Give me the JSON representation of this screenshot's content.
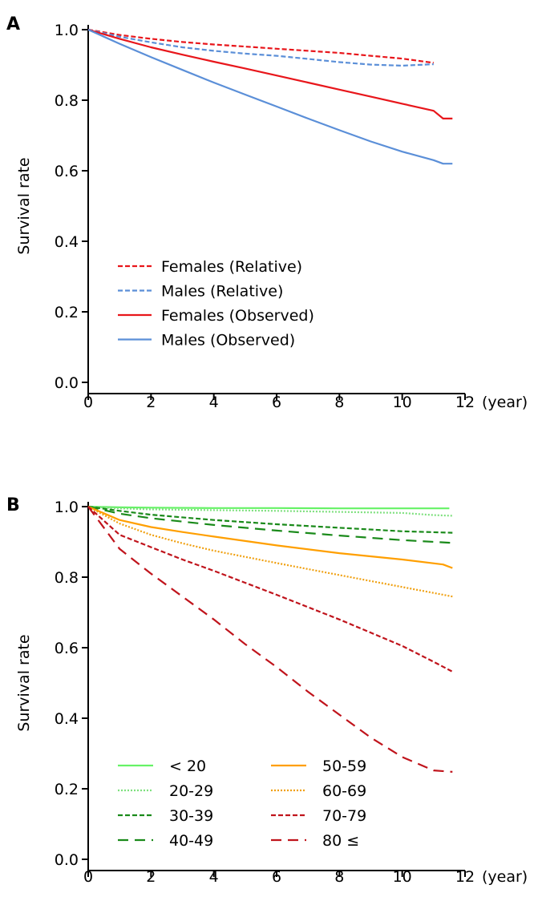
{
  "chart_data": [
    {
      "panel": "A",
      "type": "line",
      "ylabel": "Survival rate",
      "xlabel": "",
      "x_unit_label": "(year)",
      "xlim": [
        0,
        12
      ],
      "ylim": [
        0,
        1.0
      ],
      "xticks": [
        "0",
        "2",
        "4",
        "6",
        "8",
        "10",
        "12"
      ],
      "yticks": [
        "0.0",
        "0.2",
        "0.4",
        "0.6",
        "0.8",
        "1.0"
      ],
      "legend_position": "lower-left",
      "series": [
        {
          "name": "Females (Relative)",
          "color": "#e8161b",
          "dash": "dashed",
          "x": [
            0,
            1,
            2,
            3,
            4,
            5,
            6,
            7,
            8,
            9,
            10,
            11
          ],
          "y": [
            1.0,
            0.985,
            0.974,
            0.965,
            0.958,
            0.952,
            0.946,
            0.94,
            0.934,
            0.926,
            0.918,
            0.906
          ]
        },
        {
          "name": "Males (Relative)",
          "color": "#5b8fd8",
          "dash": "dashed",
          "x": [
            0,
            1,
            2,
            3,
            4,
            5,
            6,
            7,
            8,
            9,
            10,
            11
          ],
          "y": [
            1.0,
            0.98,
            0.964,
            0.95,
            0.94,
            0.932,
            0.926,
            0.917,
            0.908,
            0.901,
            0.898,
            0.902
          ]
        },
        {
          "name": "Females (Observed)",
          "color": "#e8161b",
          "dash": "solid",
          "x": [
            0,
            1,
            2,
            3,
            4,
            5,
            6,
            7,
            8,
            9,
            10,
            11,
            11.3,
            11.6
          ],
          "y": [
            1.0,
            0.974,
            0.95,
            0.929,
            0.909,
            0.89,
            0.87,
            0.85,
            0.83,
            0.81,
            0.79,
            0.77,
            0.748,
            0.748
          ]
        },
        {
          "name": "Males (Observed)",
          "color": "#5b8fd8",
          "dash": "solid",
          "x": [
            0,
            1,
            2,
            3,
            4,
            5,
            6,
            7,
            8,
            9,
            10,
            11,
            11.3,
            11.6
          ],
          "y": [
            1.0,
            0.96,
            0.922,
            0.886,
            0.85,
            0.816,
            0.782,
            0.748,
            0.715,
            0.683,
            0.654,
            0.63,
            0.62,
            0.62
          ]
        }
      ]
    },
    {
      "panel": "B",
      "type": "line",
      "ylabel": "Survival rate",
      "xlabel": "",
      "x_unit_label": "(year)",
      "xlim": [
        0,
        12
      ],
      "ylim": [
        0,
        1.0
      ],
      "xticks": [
        "0",
        "2",
        "4",
        "6",
        "8",
        "10",
        "12"
      ],
      "yticks": [
        "0.0",
        "0.2",
        "0.4",
        "0.6",
        "0.8",
        "1.0"
      ],
      "legend_position": "lower-left",
      "series": [
        {
          "name": "< 20",
          "color": "#66f266",
          "dash": "solid",
          "x": [
            0,
            1,
            2,
            4,
            6,
            8,
            10,
            11.5
          ],
          "y": [
            1.0,
            0.998,
            0.997,
            0.996,
            0.996,
            0.995,
            0.995,
            0.995
          ]
        },
        {
          "name": "20-29",
          "color": "#7ee07e",
          "dash": "dotted",
          "x": [
            0,
            1,
            2,
            4,
            6,
            8,
            10,
            11,
            11.6
          ],
          "y": [
            1.0,
            0.995,
            0.992,
            0.99,
            0.988,
            0.985,
            0.982,
            0.976,
            0.974
          ]
        },
        {
          "name": "30-39",
          "color": "#1a8a1a",
          "dash": "dashed",
          "x": [
            0,
            1,
            2,
            4,
            6,
            8,
            10,
            11.6
          ],
          "y": [
            1.0,
            0.988,
            0.977,
            0.962,
            0.95,
            0.94,
            0.93,
            0.926
          ]
        },
        {
          "name": "40-49",
          "color": "#1a8a1a",
          "dash": "longdash",
          "x": [
            0,
            1,
            2,
            4,
            6,
            8,
            10,
            11.6
          ],
          "y": [
            1.0,
            0.98,
            0.967,
            0.948,
            0.932,
            0.918,
            0.905,
            0.897
          ]
        },
        {
          "name": "50-59",
          "color": "#ff9f00",
          "dash": "solid",
          "x": [
            0,
            1,
            2,
            3,
            4,
            6,
            8,
            10,
            11.3,
            11.6
          ],
          "y": [
            1.0,
            0.962,
            0.942,
            0.928,
            0.915,
            0.89,
            0.868,
            0.85,
            0.836,
            0.826
          ]
        },
        {
          "name": "60-69",
          "color": "#f0a010",
          "dash": "dotted",
          "x": [
            0,
            1,
            2,
            3,
            4,
            6,
            8,
            10,
            11.6
          ],
          "y": [
            1.0,
            0.952,
            0.92,
            0.896,
            0.875,
            0.84,
            0.806,
            0.772,
            0.745
          ]
        },
        {
          "name": "70-79",
          "color": "#c0141c",
          "dash": "dashed",
          "x": [
            0,
            1,
            2,
            3,
            4,
            6,
            8,
            10,
            11,
            11.6
          ],
          "y": [
            1.0,
            0.92,
            0.885,
            0.85,
            0.818,
            0.75,
            0.68,
            0.605,
            0.56,
            0.532
          ]
        },
        {
          "name": "80 ≤",
          "color": "#c0141c",
          "dash": "longdash",
          "x": [
            0,
            1,
            2,
            3,
            4,
            5,
            6,
            7,
            8,
            9,
            10,
            11,
            11.6
          ],
          "y": [
            1.0,
            0.88,
            0.81,
            0.745,
            0.68,
            0.61,
            0.545,
            0.475,
            0.41,
            0.345,
            0.29,
            0.252,
            0.248
          ]
        }
      ]
    }
  ]
}
